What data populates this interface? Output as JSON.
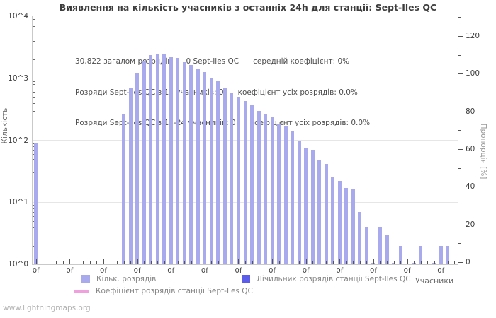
{
  "page": {
    "footer": "www.lightningmaps.org"
  },
  "chart_data": {
    "type": "bar",
    "title": "Виявлення на кількість учасників з останніх 24h для станції: Sept-Iles QC",
    "annotations": [
      "30,822 загалом розрядів      0 Sept-Iles QC      середній коефіцієнт: 0%",
      "Розряди Sept-Iles QC з 13 учасників: 0      коефіцієнт усіх розрядів: 0.0%",
      "Розряди Sept-Iles QC з 13-24 учасників: 0      коефіцієнт усіх розрядів: 0.0%"
    ],
    "x_axis": {
      "label": "Учасники",
      "slots": 63,
      "tick_label": "0f",
      "label_every": 5
    },
    "y_axis_left": {
      "label": "Кількість",
      "scale": "log",
      "ticks": [
        "10^4",
        "10^3",
        "10^2",
        "10^1",
        "10^0"
      ],
      "range": [
        1,
        10000
      ]
    },
    "y_axis_right": {
      "label": "Пропорція [%]",
      "ticks": [
        "120",
        "100",
        "80",
        "60",
        "40",
        "20",
        "0"
      ],
      "range": [
        0,
        130
      ]
    },
    "series": [
      {
        "name": "Кільк. розрядів",
        "type": "bar",
        "color": "#a9a9ee",
        "values": [
          90,
          0,
          0,
          0,
          0,
          0,
          0,
          0,
          0,
          0,
          0,
          0,
          0,
          260,
          680,
          1230,
          1870,
          2350,
          2420,
          2500,
          2230,
          2100,
          1820,
          1650,
          1440,
          1260,
          1020,
          900,
          690,
          580,
          505,
          430,
          365,
          300,
          270,
          232,
          187,
          173,
          138,
          98,
          76,
          71,
          48,
          41,
          26,
          22,
          17,
          16,
          7,
          4,
          1,
          4,
          3,
          1,
          2,
          0,
          1,
          2,
          0,
          1,
          2,
          2,
          0
        ]
      },
      {
        "name": "Лічильник розрядів станції Sept-Iles QC",
        "type": "bar",
        "color": "#5c5cea",
        "values_constant": 0
      },
      {
        "name": "Коефіцієнт розрядів станції Sept-Iles QC",
        "type": "line",
        "color": "#f0a0dd",
        "values_constant_percent": 0
      }
    ],
    "legend_position": "bottom",
    "grid": "horizontal-decades"
  }
}
